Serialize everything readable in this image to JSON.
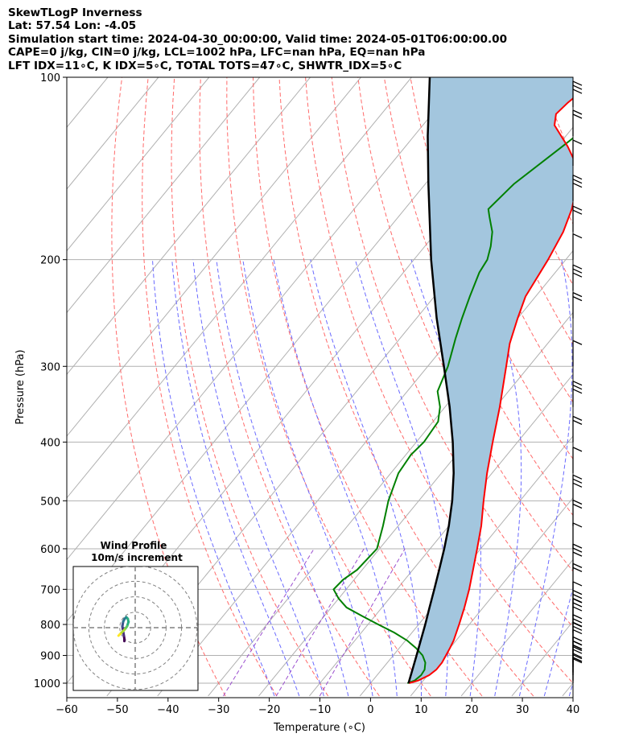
{
  "header": {
    "line1": "SkewTLogP Inverness",
    "line2": "Lat: 57.54   Lon: -4.05",
    "line3": "Simulation start time: 2024-04-30_00:00:00, Valid time: 2024-05-01T06:00:00.00",
    "line4": "CAPE=0 j/kg, CIN=0 j/kg, LCL=1002 hPa, LFC=nan hPa, EQ=nan hPa",
    "line5": "LFT IDX=11∘C, K IDX=5∘C, TOTAL TOTS=47∘C, SHWTR_IDX=5∘C"
  },
  "inset": {
    "title1": "Wind Profile",
    "title2": "10m/s increment"
  },
  "chart_data": {
    "type": "line",
    "xlabel": "Temperature (∘C)",
    "ylabel": "Pressure (hPa)",
    "xlim": [
      -60,
      40
    ],
    "ylim": [
      1050,
      100
    ],
    "yscale": "log",
    "xticks": [
      -60,
      -50,
      -40,
      -30,
      -20,
      -10,
      0,
      10,
      20,
      30,
      40
    ],
    "yticks": [
      1000,
      900,
      800,
      700,
      600,
      500,
      400,
      300,
      200,
      100
    ],
    "grid": true,
    "colors": {
      "temperature": "#ff0000",
      "dewpoint": "#008000",
      "parcel": "#000000",
      "cape_fill": "#a3c6de",
      "dry_adiabats": "#ff6a6a",
      "moist_adiabats": "#6a6aff",
      "mixing_ratio": "#9b4fcf",
      "isotherms": "#b0b0b0"
    },
    "series": [
      {
        "pressure": [
          1000,
          990,
          970,
          950,
          925,
          900,
          875,
          850,
          800,
          750,
          700,
          650,
          600,
          550,
          500,
          450,
          400,
          350,
          300,
          275,
          250,
          230,
          200,
          180,
          165,
          150,
          140,
          130,
          120,
          115,
          110,
          105,
          100
        ],
        "values": [
          7.6,
          9,
          10.3,
          10.8,
          10.8,
          10.4,
          10.0,
          9.5,
          8.0,
          6.3,
          4.3,
          1.9,
          -0.7,
          -3.6,
          -7.2,
          -11.0,
          -14.9,
          -19.2,
          -24.5,
          -27.5,
          -30.0,
          -32.0,
          -33.5,
          -35.0,
          -37.0,
          -40.0,
          -43.0,
          -48.0,
          -54.0,
          -55.5,
          -55.0,
          -54.0,
          -52.5
        ]
      },
      {
        "pressure": [
          1000,
          990,
          970,
          950,
          925,
          900,
          875,
          850,
          825,
          800,
          775,
          750,
          725,
          700,
          675,
          650,
          600,
          550,
          500,
          450,
          420,
          400,
          370,
          350,
          330,
          300,
          270,
          250,
          230,
          210,
          200,
          190,
          180,
          170,
          165,
          150,
          130,
          110,
          100
        ],
        "values": [
          7.3,
          8.3,
          8.7,
          8.5,
          7.5,
          5.8,
          3.3,
          0.3,
          -3.5,
          -8.0,
          -12.5,
          -17.0,
          -20.0,
          -22.5,
          -22.2,
          -21.0,
          -20.5,
          -23.0,
          -26.0,
          -28.5,
          -29.0,
          -28.5,
          -29.0,
          -31.0,
          -34.0,
          -36.0,
          -39.0,
          -41.0,
          -43.0,
          -45.0,
          -45.5,
          -47.0,
          -49.0,
          -52.0,
          -53.5,
          -52.5,
          -49.0,
          -45.0,
          -42.0
        ]
      },
      {
        "pressure": [
          1000,
          950,
          900,
          850,
          800,
          750,
          700,
          650,
          600,
          550,
          500,
          450,
          400,
          350,
          300,
          250,
          200,
          150,
          125,
          100
        ],
        "values": [
          7.5,
          6.1,
          4.6,
          3.0,
          1.3,
          -0.6,
          -2.6,
          -4.8,
          -7.2,
          -10.0,
          -13.4,
          -17.6,
          -22.8,
          -29.1,
          -36.8,
          -46.0,
          -56.6,
          -69.4,
          -77.3,
          -86.4
        ]
      }
    ],
    "wind_profile": {
      "rings": [
        10,
        20,
        30,
        40
      ],
      "u": [
        0.8,
        0.8,
        0.5,
        0,
        -0.5,
        0,
        1,
        2,
        3,
        3.5,
        2.5,
        1,
        -1,
        -2,
        -3
      ],
      "v": [
        -3.5,
        -2,
        0,
        3,
        6,
        9,
        11,
        12,
        11,
        9,
        6,
        4,
        2,
        1,
        0
      ]
    }
  }
}
